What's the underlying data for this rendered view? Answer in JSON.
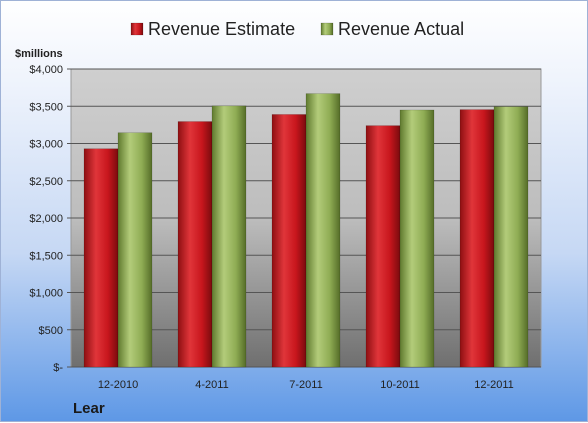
{
  "chart_data": {
    "type": "bar",
    "company": "Lear",
    "unit_label": "$millions",
    "categories": [
      "12-2010",
      "4-2011",
      "7-2011",
      "10-2011",
      "12-2011"
    ],
    "series": [
      {
        "name": "Revenue Estimate",
        "color": "#c8161d",
        "values": [
          2930,
          3295,
          3390,
          3240,
          3455
        ]
      },
      {
        "name": "Revenue Actual",
        "color": "#8fac54",
        "values": [
          3145,
          3505,
          3670,
          3450,
          3495
        ]
      }
    ],
    "y_ticks": [
      "$-",
      "$500",
      "$1,000",
      "$1,500",
      "$2,000",
      "$2,500",
      "$3,000",
      "$3,500",
      "$4,000"
    ],
    "ylim": [
      0,
      4000
    ],
    "y_step": 500,
    "grid": true,
    "legend": "top"
  }
}
